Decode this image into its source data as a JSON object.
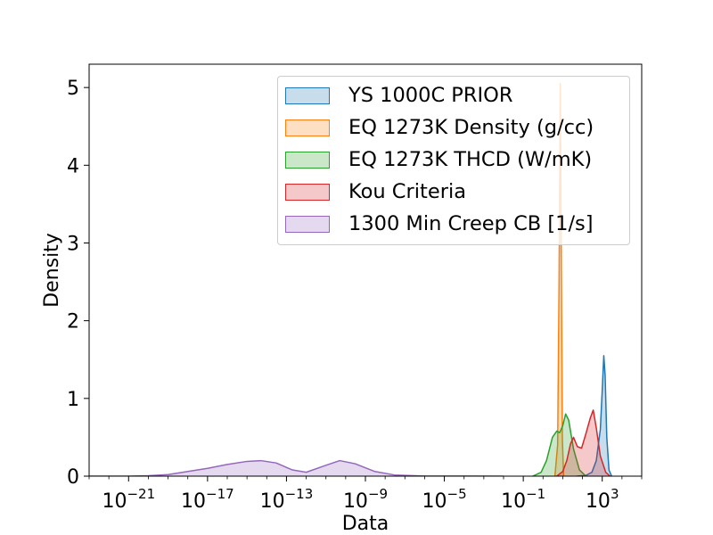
{
  "chart_data": {
    "type": "area",
    "xlabel": "Data",
    "ylabel": "Density",
    "xscale": "log",
    "xlim": [
      1e-23,
      100000.0
    ],
    "ylim": [
      0,
      5.3
    ],
    "xticks": [
      {
        "value": 1e-21,
        "base": "10",
        "exp": "−21"
      },
      {
        "value": 1e-17,
        "base": "10",
        "exp": "−17"
      },
      {
        "value": 1e-13,
        "base": "10",
        "exp": "−13"
      },
      {
        "value": 1e-09,
        "base": "10",
        "exp": "−9"
      },
      {
        "value": 1e-05,
        "base": "10",
        "exp": "−5"
      },
      {
        "value": 0.1,
        "base": "10",
        "exp": "−1"
      },
      {
        "value": 1000.0,
        "base": "10",
        "exp": "3"
      }
    ],
    "yticks": [
      0,
      1,
      2,
      3,
      4,
      5
    ],
    "grid": false,
    "legend_position": "top-right",
    "series": [
      {
        "name": "YS 1000C PRIOR",
        "color": "#1f77b4",
        "points": [
          [
            50,
            0
          ],
          [
            150,
            0.01
          ],
          [
            300,
            0.05
          ],
          [
            500,
            0.2
          ],
          [
            800,
            0.6
          ],
          [
            1000,
            1.1
          ],
          [
            1200,
            1.55
          ],
          [
            1400,
            1.3
          ],
          [
            1700,
            0.5
          ],
          [
            2200,
            0.08
          ],
          [
            3000,
            0
          ]
        ]
      },
      {
        "name": "EQ 1273K Density (g/cc)",
        "color": "#ff7f0e",
        "points": [
          [
            4,
            0
          ],
          [
            5.5,
            0.4
          ],
          [
            6.5,
            2.5
          ],
          [
            7.5,
            5.05
          ],
          [
            8.5,
            2.6
          ],
          [
            9.5,
            0.5
          ],
          [
            11,
            0
          ]
        ]
      },
      {
        "name": "EQ 1273K THCD (W/mK)",
        "color": "#2ca02c",
        "points": [
          [
            0.3,
            0
          ],
          [
            0.8,
            0.05
          ],
          [
            1.5,
            0.2
          ],
          [
            3,
            0.5
          ],
          [
            5,
            0.58
          ],
          [
            7,
            0.56
          ],
          [
            10,
            0.65
          ],
          [
            14,
            0.8
          ],
          [
            20,
            0.72
          ],
          [
            35,
            0.35
          ],
          [
            70,
            0.08
          ],
          [
            150,
            0
          ]
        ]
      },
      {
        "name": "Kou Criteria",
        "color": "#d62728",
        "points": [
          [
            5,
            0
          ],
          [
            10,
            0.06
          ],
          [
            16,
            0.2
          ],
          [
            25,
            0.42
          ],
          [
            35,
            0.5
          ],
          [
            55,
            0.38
          ],
          [
            90,
            0.36
          ],
          [
            150,
            0.55
          ],
          [
            250,
            0.75
          ],
          [
            350,
            0.85
          ],
          [
            500,
            0.62
          ],
          [
            800,
            0.26
          ],
          [
            1500,
            0.05
          ],
          [
            2500,
            0
          ]
        ]
      },
      {
        "name": "1300 Min Creep CB [1/s]",
        "color": "#9467bd",
        "points": [
          [
            1e-23,
            0
          ],
          [
            1e-21,
            0
          ],
          [
            1e-20,
            0.005
          ],
          [
            1e-19,
            0.02
          ],
          [
            1e-18,
            0.06
          ],
          [
            1e-17,
            0.1
          ],
          [
            1e-16,
            0.15
          ],
          [
            1e-15,
            0.19
          ],
          [
            5e-15,
            0.2
          ],
          [
            3e-14,
            0.17
          ],
          [
            2e-13,
            0.08
          ],
          [
            1e-12,
            0.05
          ],
          [
            1e-11,
            0.14
          ],
          [
            5e-11,
            0.2
          ],
          [
            3e-10,
            0.16
          ],
          [
            3e-09,
            0.06
          ],
          [
            3e-08,
            0.015
          ],
          [
            1e-06,
            0.002
          ],
          [
            0.0001,
            0.001
          ],
          [
            0.01,
            0
          ]
        ]
      }
    ]
  }
}
